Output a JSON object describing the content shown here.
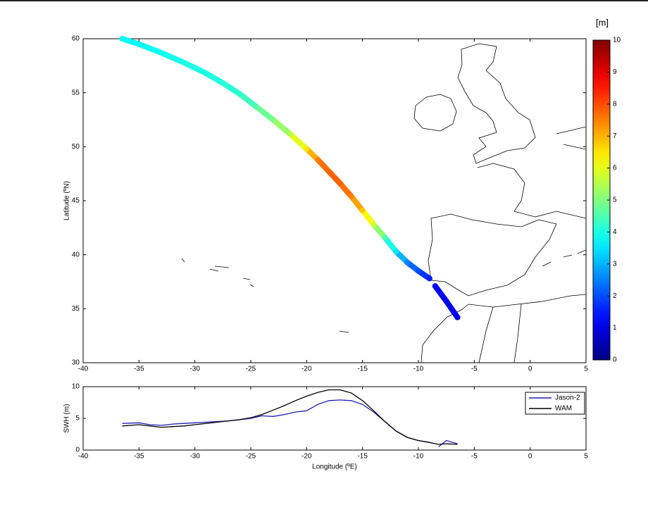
{
  "chart_data": [
    {
      "type": "scatter",
      "ylabel": "Latitude (ºN)",
      "colorbar_label": "[m]",
      "colormap": "jet",
      "x": [
        -36.5,
        -35,
        -33,
        -31,
        -29,
        -27.5,
        -26,
        -24.5,
        -23,
        -21.5,
        -20,
        -19,
        -18,
        -17,
        -16,
        -15,
        -14,
        -13,
        -12,
        -11,
        -10,
        -9,
        null,
        -8.5,
        -7.5,
        -6.5
      ],
      "y": [
        60,
        59.5,
        58.7,
        57.8,
        56.8,
        55.9,
        54.9,
        53.7,
        52.5,
        51.2,
        49.8,
        48.8,
        47.7,
        46.6,
        45.4,
        44.1,
        42.8,
        41.6,
        40.3,
        39.3,
        38.5,
        37.8,
        null,
        37.1,
        35.7,
        34.2
      ],
      "values": [
        3.7,
        3.8,
        3.9,
        4.0,
        4.0,
        4.1,
        4.2,
        4.6,
        5.0,
        5.5,
        6.5,
        7.5,
        7.8,
        7.8,
        7.5,
        6.8,
        5.8,
        4.5,
        3.5,
        2.5,
        2.0,
        1.5,
        null,
        1.2,
        1.1,
        1.0
      ],
      "xlim": [
        -40,
        5
      ],
      "xticks": [
        -40,
        -35,
        -30,
        -25,
        -20,
        -15,
        -10,
        -5,
        0,
        5
      ],
      "ylim": [
        30,
        60
      ],
      "yticks": [
        30,
        35,
        40,
        45,
        50,
        55,
        60
      ],
      "clim": [
        0,
        10
      ],
      "cticks": [
        0,
        1,
        2,
        3,
        4,
        5,
        6,
        7,
        8,
        9,
        10
      ]
    },
    {
      "type": "line",
      "xlabel": "Longitude (ºE)",
      "ylabel": "SWH (m)",
      "x": [
        -36.5,
        -35,
        -34,
        -33,
        -32,
        -31,
        -30,
        -29,
        -28,
        -27,
        -26,
        -25,
        -24,
        -23,
        -22,
        -21,
        -20,
        -19,
        -18,
        -17,
        -16,
        -15,
        -14,
        -13,
        -12,
        -11,
        -10,
        -9,
        -8.5,
        -8.2,
        -7.5,
        -6.5
      ],
      "series": [
        {
          "name": "Jason-2",
          "color": "#1f1fb4",
          "values": [
            4.2,
            4.3,
            4.0,
            3.9,
            4.1,
            4.2,
            4.3,
            4.4,
            4.5,
            4.6,
            4.8,
            5.0,
            5.4,
            5.3,
            5.6,
            6.0,
            6.2,
            7.2,
            7.8,
            7.9,
            7.8,
            7.2,
            6.0,
            4.5,
            3.0,
            2.0,
            1.5,
            1.2,
            null,
            0.5,
            1.5,
            1.0
          ]
        },
        {
          "name": "WAM",
          "color": "#000000",
          "values": [
            3.8,
            4.0,
            3.8,
            3.6,
            3.7,
            3.8,
            4.0,
            4.2,
            4.4,
            4.6,
            4.8,
            5.1,
            5.6,
            6.3,
            7.0,
            7.8,
            8.5,
            9.1,
            9.5,
            9.5,
            9.0,
            7.8,
            6.2,
            4.5,
            3.0,
            2.0,
            1.5,
            1.2,
            1.0,
            0.9,
            1.0,
            0.9
          ]
        }
      ],
      "xlim": [
        -40,
        5
      ],
      "xticks": [
        -40,
        -35,
        -30,
        -25,
        -20,
        -15,
        -10,
        -5,
        0,
        5
      ],
      "ylim": [
        0,
        10
      ],
      "yticks": [
        0,
        5,
        10
      ]
    }
  ]
}
